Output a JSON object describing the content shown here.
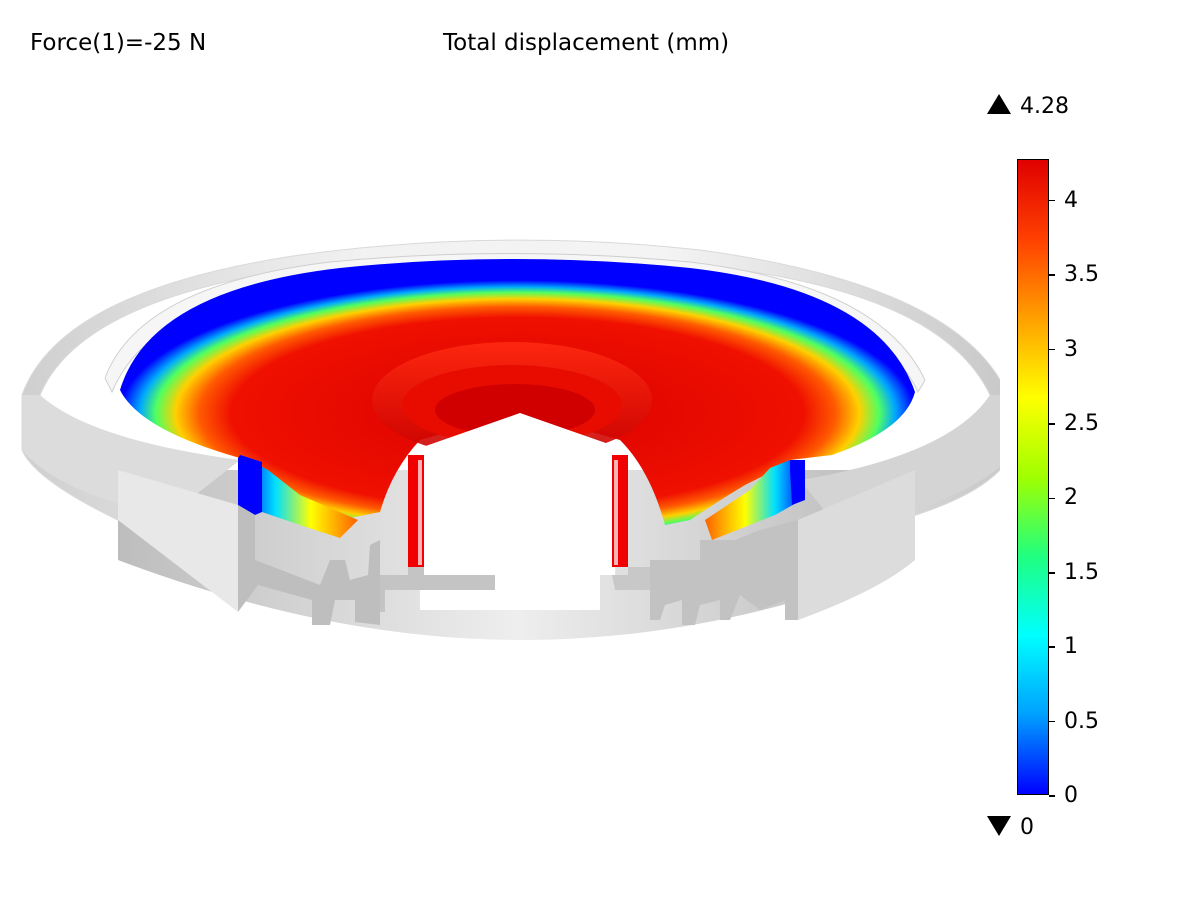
{
  "plot": {
    "parameter_label": "Force(1)=-25 N",
    "title": "Total displacement (mm)"
  },
  "legend": {
    "max_label": "4.28",
    "min_label": "0",
    "range": [
      0,
      4.28
    ],
    "colormap": "rainbow",
    "colors": [
      "#0000ff",
      "#00a0ff",
      "#00ffff",
      "#20ff80",
      "#a0ff00",
      "#ffff00",
      "#ffa000",
      "#ff4000",
      "#e00000"
    ],
    "ticks": [
      {
        "value": 0,
        "label": "0"
      },
      {
        "value": 0.5,
        "label": "0.5"
      },
      {
        "value": 1,
        "label": "1"
      },
      {
        "value": 1.5,
        "label": "1.5"
      },
      {
        "value": 2,
        "label": "2"
      },
      {
        "value": 2.5,
        "label": "2.5"
      },
      {
        "value": 3,
        "label": "3"
      },
      {
        "value": 3.5,
        "label": "3.5"
      },
      {
        "value": 4,
        "label": "4"
      }
    ]
  },
  "scene": {
    "housing_color": "#e6e6e6",
    "displaced_color": "#ff1a00",
    "fixed_color": "#0000ff"
  }
}
